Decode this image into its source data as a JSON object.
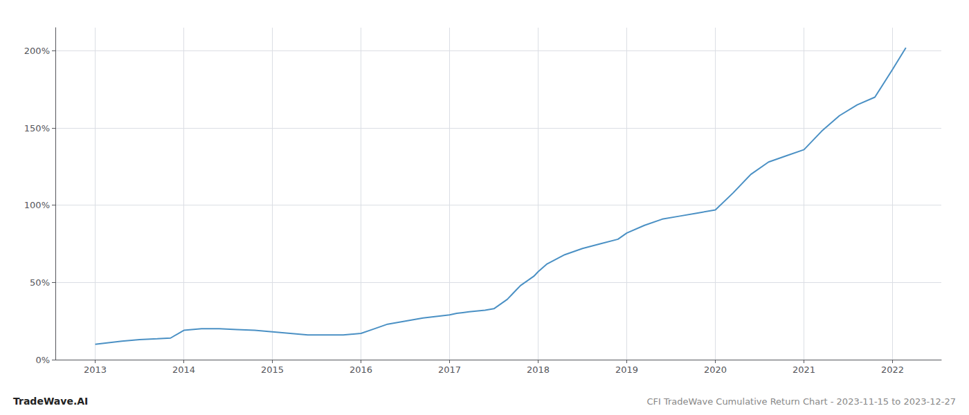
{
  "chart_data": {
    "type": "line",
    "title": "CFI TradeWave Cumulative Return Chart - 2023-11-15 to 2023-12-27",
    "annotations": [
      "TradeWave.AI"
    ],
    "color": "#4a90c4",
    "grid": true,
    "x": [
      2013.0,
      2013.15,
      2013.3,
      2013.5,
      2013.7,
      2013.85,
      2014.0,
      2014.2,
      2014.4,
      2014.6,
      2014.8,
      2015.0,
      2015.2,
      2015.4,
      2015.6,
      2015.8,
      2016.0,
      2016.15,
      2016.3,
      2016.5,
      2016.7,
      2016.85,
      2017.0,
      2017.08,
      2017.15,
      2017.22,
      2017.3,
      2017.4,
      2017.5,
      2017.55,
      2017.6,
      2017.65,
      2017.7,
      2017.75,
      2017.8,
      2017.85,
      2017.9,
      2017.95,
      2018.0,
      2018.1,
      2018.2,
      2018.3,
      2018.5,
      2018.7,
      2018.9,
      2019.0,
      2019.2,
      2019.4,
      2019.6,
      2019.8,
      2020.0,
      2020.2,
      2020.4,
      2020.6,
      2020.8,
      2021.0,
      2021.2,
      2021.4,
      2021.6,
      2021.8,
      2022.0,
      2022.15
    ],
    "values": [
      10,
      11,
      12,
      13,
      13.5,
      14,
      19,
      20,
      20,
      19.5,
      19,
      18,
      17,
      16,
      16,
      16,
      17,
      20,
      23,
      25,
      27,
      28,
      29,
      30,
      30.5,
      31,
      31.5,
      32,
      33,
      35,
      37,
      39,
      42,
      45,
      48,
      50,
      52,
      54,
      57,
      62,
      65,
      68,
      72,
      75,
      78,
      82,
      87,
      91,
      93,
      95,
      97,
      108,
      120,
      128,
      132,
      136,
      148,
      158,
      165,
      170,
      188,
      202
    ],
    "xlim": [
      2012.55,
      2022.55
    ],
    "xticks": [
      2013,
      2014,
      2015,
      2016,
      2017,
      2018,
      2019,
      2020,
      2021,
      2022
    ],
    "ylim": [
      0,
      215
    ],
    "yticks": [
      {
        "value": 0,
        "label": "0%"
      },
      {
        "value": 50,
        "label": "50%"
      },
      {
        "value": 100,
        "label": "100%"
      },
      {
        "value": 150,
        "label": "150%"
      },
      {
        "value": 200,
        "label": "200%"
      }
    ]
  }
}
